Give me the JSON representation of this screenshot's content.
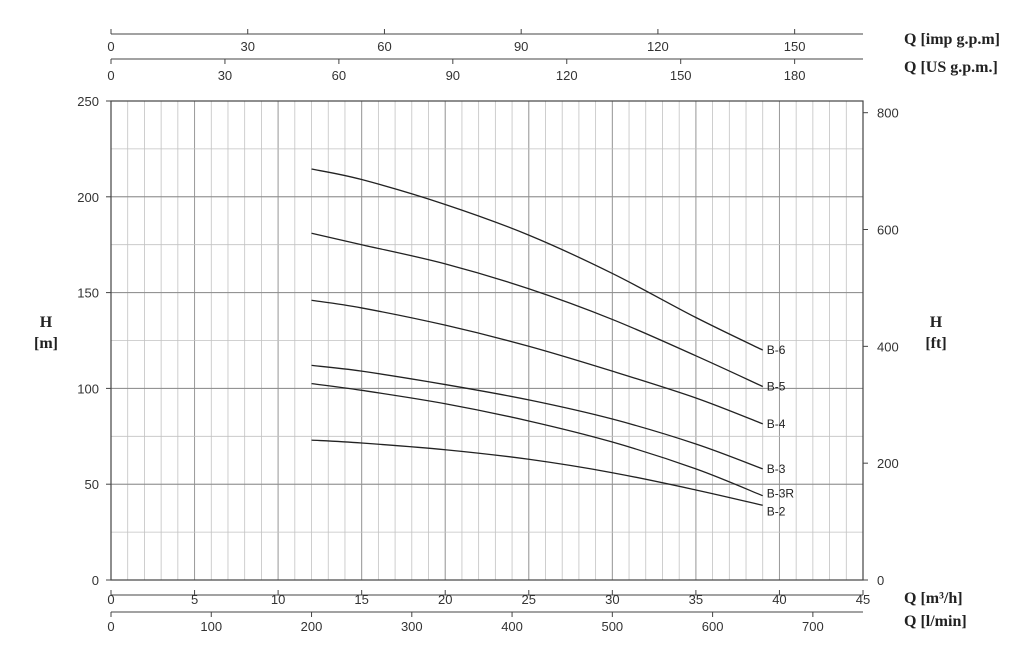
{
  "chart_data": {
    "type": "line",
    "x_axis": {
      "label": "Q [m³/h]",
      "min": 0,
      "max": 45,
      "ticks": [
        0,
        5,
        10,
        15,
        20,
        25,
        30,
        35,
        40,
        45
      ]
    },
    "x2_axis": {
      "label": "Q [l/min]",
      "min": 0,
      "max": 750,
      "ticks": [
        0,
        100,
        200,
        300,
        400,
        500,
        600,
        700
      ]
    },
    "top_axis_imp": {
      "label": "Q [imp g.p.m]",
      "min": 0,
      "max": 165,
      "ticks": [
        0,
        30,
        60,
        90,
        120,
        150
      ]
    },
    "top_axis_us": {
      "label": "Q [US g.p.m.]",
      "min": 0,
      "max": 198,
      "ticks": [
        0,
        30,
        60,
        90,
        120,
        150,
        180
      ]
    },
    "y_axis": {
      "label_top": "H",
      "label_bottom": "[m]",
      "min": 0,
      "max": 250,
      "ticks": [
        0,
        50,
        100,
        150,
        200,
        250
      ]
    },
    "y2_axis": {
      "label_top": "H",
      "label_bottom": "[ft]",
      "min": 0,
      "max": 820,
      "ticks": [
        0,
        200,
        400,
        600,
        800
      ]
    },
    "grid": true,
    "series": [
      {
        "name": "B-6",
        "x": [
          12,
          15,
          20,
          25,
          30,
          35,
          39
        ],
        "y": [
          214.5,
          209,
          196,
          180,
          160,
          137,
          120
        ]
      },
      {
        "name": "B-5",
        "x": [
          12,
          15,
          20,
          25,
          30,
          35,
          39
        ],
        "y": [
          181,
          175,
          165,
          152,
          136,
          117,
          101
        ]
      },
      {
        "name": "B-4",
        "x": [
          12,
          15,
          20,
          25,
          30,
          35,
          39
        ],
        "y": [
          146,
          142,
          133,
          122,
          109,
          95,
          81.5
        ]
      },
      {
        "name": "B-3",
        "x": [
          12,
          15,
          20,
          25,
          30,
          35,
          39
        ],
        "y": [
          112,
          109,
          102,
          94,
          84,
          71,
          58
        ]
      },
      {
        "name": "B-3R",
        "x": [
          12,
          15,
          20,
          25,
          30,
          35,
          39
        ],
        "y": [
          102.5,
          99,
          92,
          83,
          72,
          58,
          44
        ]
      },
      {
        "name": "B-2",
        "x": [
          12,
          15,
          20,
          25,
          30,
          35,
          39
        ],
        "y": [
          73,
          71.5,
          68,
          63,
          56,
          47,
          39
        ]
      }
    ]
  }
}
